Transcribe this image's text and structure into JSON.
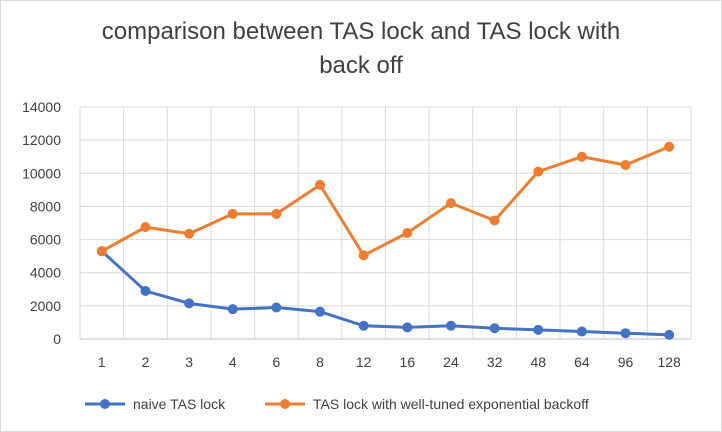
{
  "chart_data": {
    "type": "line",
    "title": "comparison between TAS lock and TAS lock with back off",
    "title_lines": [
      "comparison between TAS lock and TAS lock with",
      "back off"
    ],
    "xlabel": "",
    "ylabel": "",
    "categories": [
      "1",
      "2",
      "3",
      "4",
      "6",
      "8",
      "12",
      "16",
      "24",
      "32",
      "48",
      "64",
      "96",
      "128"
    ],
    "ylim": [
      0,
      14000
    ],
    "yticks": [
      0,
      2000,
      4000,
      6000,
      8000,
      10000,
      12000,
      14000
    ],
    "grid": true,
    "legend_position": "bottom",
    "series": [
      {
        "name": "naive TAS lock",
        "color": "#4472C4",
        "values": [
          5300,
          2900,
          2150,
          1800,
          1900,
          1650,
          800,
          700,
          800,
          650,
          550,
          450,
          350,
          250
        ]
      },
      {
        "name": "TAS lock with well-tuned exponential backoff",
        "color": "#ED7D31",
        "values": [
          5300,
          6750,
          6350,
          7550,
          7550,
          9300,
          5050,
          6400,
          8200,
          7150,
          10100,
          11000,
          10500,
          11600
        ]
      }
    ]
  }
}
